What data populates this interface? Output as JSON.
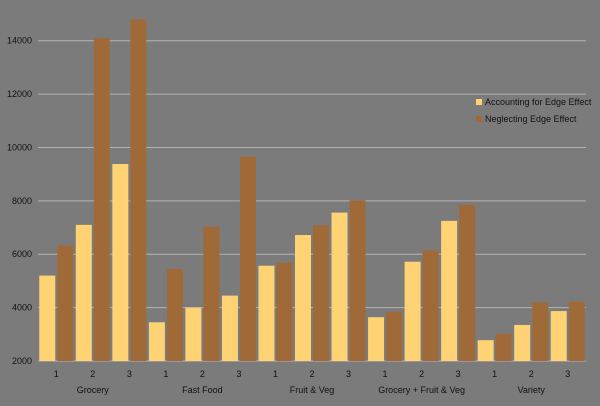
{
  "chart_data": {
    "type": "bar",
    "title": "",
    "xlabel": "",
    "ylabel": "",
    "ylim": [
      2000,
      15000
    ],
    "y_ticks": [
      2000,
      4000,
      6000,
      8000,
      10000,
      12000,
      14000
    ],
    "grid": true,
    "legend_position": "right",
    "groups": [
      {
        "label": "Grocery",
        "categories": [
          "1",
          "2",
          "3"
        ]
      },
      {
        "label": "Fast Food",
        "categories": [
          "1",
          "2",
          "3"
        ]
      },
      {
        "label": "Fruit & Veg",
        "categories": [
          "1",
          "2",
          "3"
        ]
      },
      {
        "label": "Grocery + Fruit & Veg",
        "categories": [
          "1",
          "2",
          "3"
        ]
      },
      {
        "label": "Variety",
        "categories": [
          "1",
          "2",
          "3"
        ]
      }
    ],
    "categories": [
      "1",
      "2",
      "3",
      "1",
      "2",
      "3",
      "1",
      "2",
      "3",
      "1",
      "2",
      "3",
      "1",
      "2",
      "3"
    ],
    "series": [
      {
        "name": "Accounting for Edge Effect",
        "color": "#ffd373",
        "values": [
          5200,
          7100,
          9380,
          3450,
          4000,
          4450,
          5570,
          6720,
          7560,
          3640,
          5720,
          7250,
          2780,
          3350,
          3870
        ]
      },
      {
        "name": "Neglecting Edge Effect",
        "color": "#a06a38",
        "values": [
          6320,
          14100,
          14800,
          5450,
          7030,
          9650,
          5680,
          7080,
          8020,
          3840,
          6150,
          7850,
          3020,
          4200,
          4220
        ]
      }
    ],
    "gridline_color": "#b3b3b3"
  }
}
